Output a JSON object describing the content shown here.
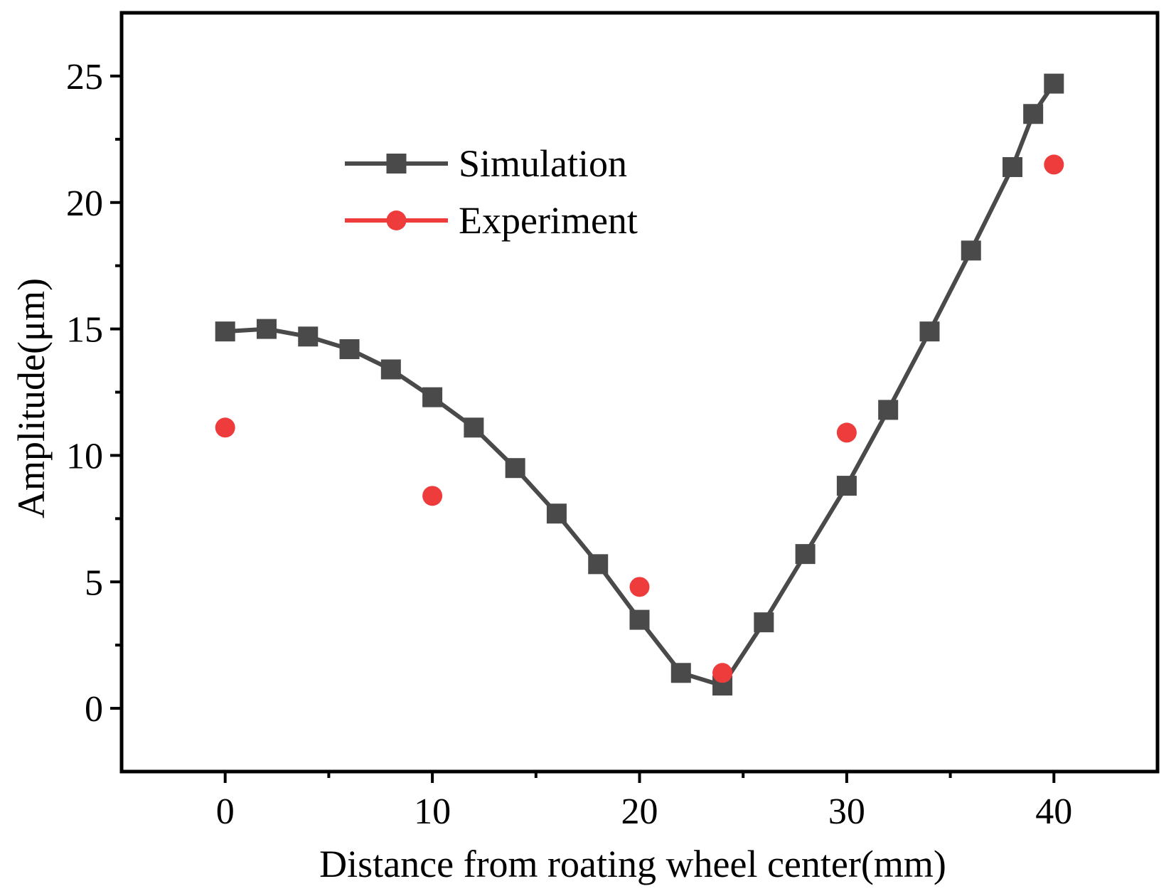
{
  "chart_data": {
    "type": "line",
    "title": "",
    "xlabel": "Distance from roating wheel center(mm)",
    "ylabel": "Amplitude(μm)",
    "xlim": [
      -5,
      45
    ],
    "ylim": [
      -2.5,
      27.5
    ],
    "x_ticks": [
      0,
      10,
      20,
      30,
      40
    ],
    "y_ticks": [
      0,
      5,
      10,
      15,
      20,
      25
    ],
    "grid": false,
    "legend_position": "upper-left",
    "series": [
      {
        "name": "Simulation",
        "marker": "square",
        "line": true,
        "color": "#4a4a4a",
        "x": [
          0,
          2,
          4,
          6,
          8,
          10,
          12,
          14,
          16,
          18,
          20,
          22,
          24,
          26,
          28,
          30,
          32,
          34,
          36,
          38,
          39,
          40
        ],
        "y": [
          14.9,
          15.0,
          14.7,
          14.2,
          13.4,
          12.3,
          11.1,
          9.5,
          7.7,
          5.7,
          3.5,
          1.4,
          0.9,
          3.4,
          6.1,
          8.8,
          11.8,
          14.9,
          18.1,
          21.4,
          23.5,
          24.7
        ]
      },
      {
        "name": "Experiment",
        "marker": "circle",
        "line": false,
        "color": "#ee3b3b",
        "x": [
          0,
          10,
          20,
          24,
          30,
          40
        ],
        "y": [
          11.1,
          8.4,
          4.8,
          1.4,
          10.9,
          21.5
        ]
      }
    ]
  }
}
